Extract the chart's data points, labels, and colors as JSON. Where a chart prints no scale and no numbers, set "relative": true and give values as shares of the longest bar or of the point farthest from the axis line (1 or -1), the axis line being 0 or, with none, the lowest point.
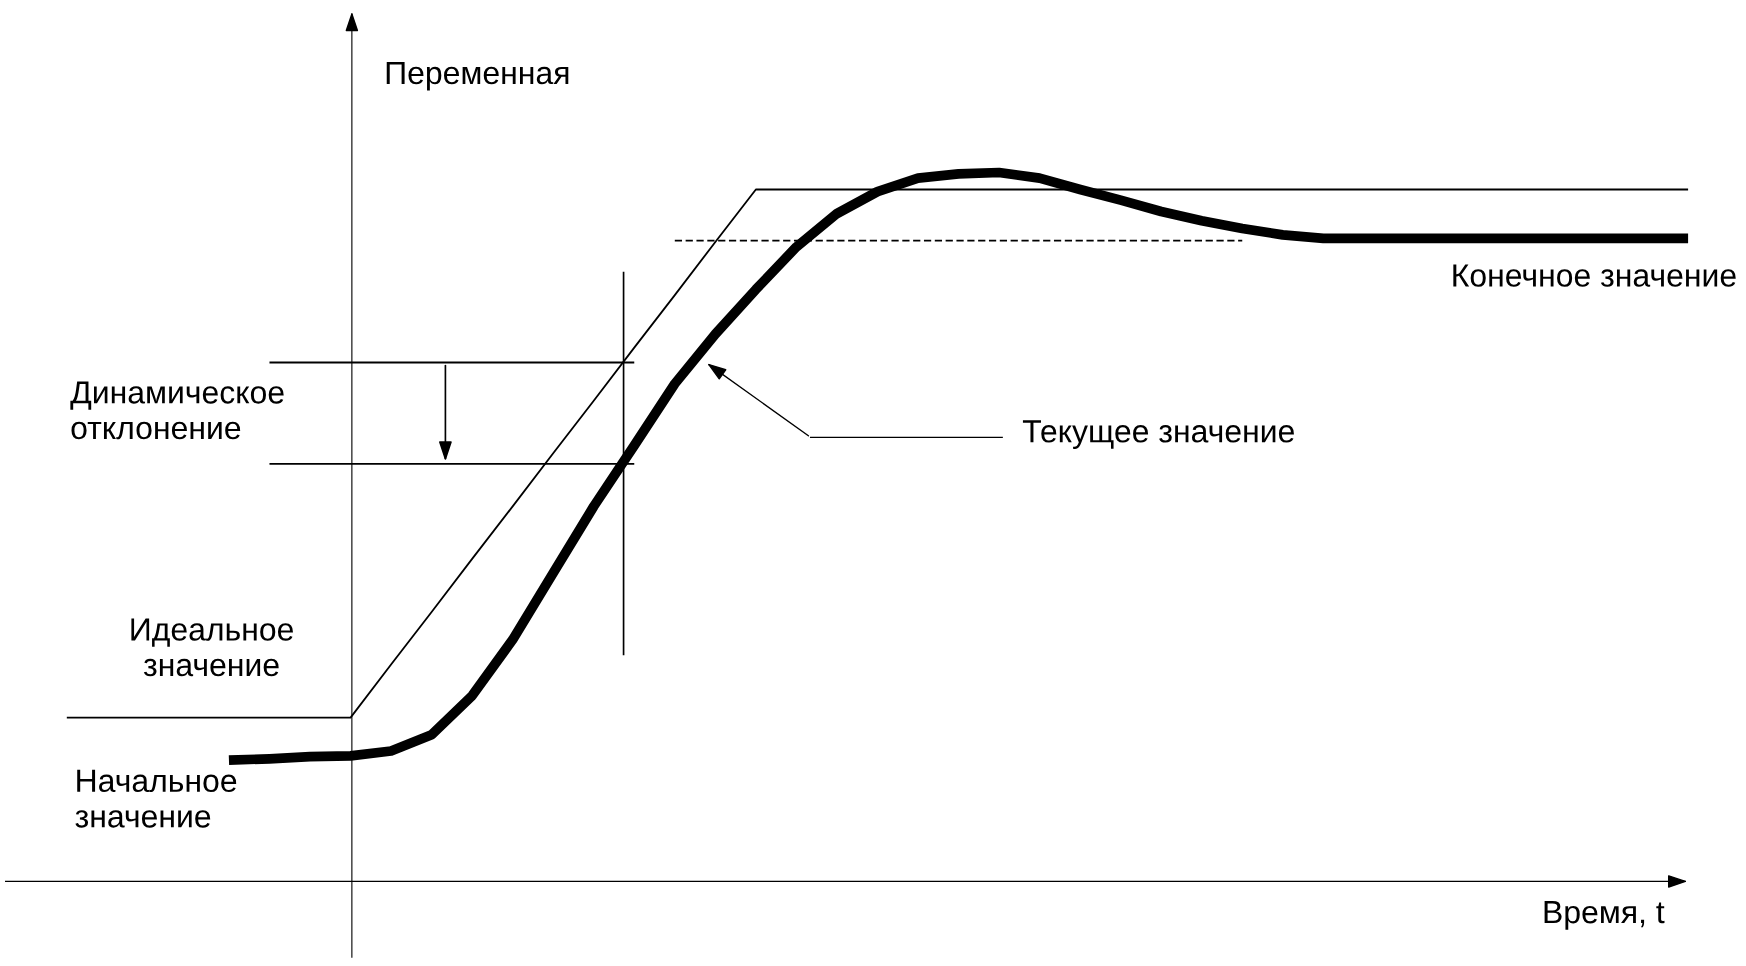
{
  "chart_data": {
    "type": "line",
    "relative": true,
    "marker": "none",
    "categories": [
      null,
      null,
      null,
      null,
      null,
      null,
      null,
      null,
      null,
      null,
      null,
      null,
      null,
      null,
      null,
      null,
      null,
      null,
      null,
      null,
      null,
      null,
      null,
      null,
      null,
      null,
      null,
      null,
      null,
      null,
      null,
      null,
      null,
      null,
      null,
      null,
      null,
      null,
      null,
      null,
      null
    ],
    "series": [
      {
        "color": "#000000",
        "line_style": "solid",
        "values": [
          null,
          null,
          null,
          null,
          0.171,
          0.173,
          0.176,
          0.177,
          0.184,
          0.207,
          0.262,
          0.341,
          0.435,
          0.529,
          0.615,
          0.702,
          0.772,
          0.835,
          0.895,
          0.942,
          0.973,
          0.992,
          0.998,
          1.0,
          0.992,
          0.976,
          0.961,
          0.945,
          0.932,
          0.921,
          0.912,
          0.907,
          0.907,
          0.907,
          0.907,
          0.907,
          0.907,
          0.907,
          0.907,
          0.907,
          0.907
        ]
      },
      {
        "color": "#000000",
        "line_style": "solid",
        "values": [
          0.231,
          0.231,
          0.231,
          0.231,
          0.231,
          0.231,
          0.231,
          0.231,
          0.306,
          0.38,
          0.455,
          0.529,
          0.604,
          0.678,
          0.753,
          0.827,
          0.902,
          0.976,
          0.976,
          0.976,
          0.976,
          0.976,
          0.976,
          0.976,
          0.976,
          0.976,
          0.976,
          0.976,
          0.976,
          0.976,
          0.976,
          0.976,
          0.976,
          0.976,
          0.976,
          0.976,
          0.976,
          0.976,
          0.976,
          0.976,
          0.976
        ]
      },
      {
        "color": "#000000",
        "line_style": "dashed",
        "values": [
          null,
          null,
          null,
          null,
          null,
          null,
          null,
          null,
          null,
          null,
          null,
          null,
          null,
          null,
          null,
          0.904,
          0.904,
          0.904,
          0.904,
          0.904,
          0.904,
          0.904,
          0.904,
          0.904,
          0.904,
          0.904,
          0.904,
          0.904,
          0.904,
          0.904,
          null,
          null,
          null,
          null,
          null,
          null,
          null,
          null,
          null,
          null,
          null
        ]
      },
      {
        "color": "#000000",
        "line_style": "solid",
        "values": [
          null,
          null,
          null,
          null,
          null,
          0.732,
          0.732,
          0.732,
          0.732,
          0.732,
          0.732,
          0.732,
          0.732,
          0.732,
          0.732,
          null,
          null,
          null,
          null,
          null,
          null,
          null,
          null,
          null,
          null,
          null,
          null,
          null,
          null,
          null,
          null,
          null,
          null,
          null,
          null,
          null,
          null,
          null,
          null,
          null,
          null
        ]
      },
      {
        "color": "#000000",
        "line_style": "solid",
        "values": [
          null,
          null,
          null,
          null,
          null,
          0.589,
          0.589,
          0.589,
          0.589,
          0.589,
          0.589,
          0.589,
          0.589,
          0.589,
          0.589,
          null,
          null,
          null,
          null,
          null,
          null,
          null,
          null,
          null,
          null,
          null,
          null,
          null,
          null,
          null,
          null,
          null,
          null,
          null,
          null,
          null,
          null,
          null,
          null,
          null,
          null
        ]
      }
    ],
    "annotations": [
      "Переменная",
      "Время, t",
      "Конечное значение",
      "Текущее значение",
      "Динамическое\nотклонение",
      "Идеальное\nзначение",
      "Начальное\nзначение"
    ]
  }
}
